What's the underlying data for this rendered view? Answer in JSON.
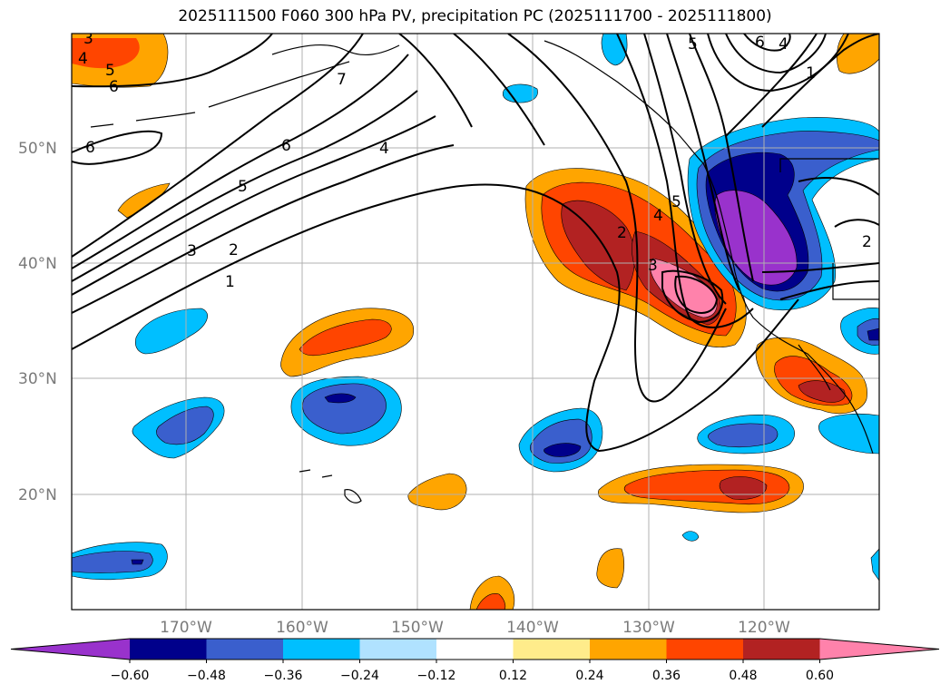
{
  "title": "2025111500 F060 300 hPa PV, precipitation PC (2025111700 - 2025111800)",
  "lat_labels": [
    "50°N",
    "40°N",
    "30°N",
    "20°N"
  ],
  "lon_labels": [
    "170°W",
    "160°W",
    "150°W",
    "140°W",
    "130°W",
    "120°W"
  ],
  "colorbar": {
    "tick_labels": [
      "−0.60",
      "−0.48",
      "−0.36",
      "−0.24",
      "−0.12",
      "0.12",
      "0.24",
      "0.36",
      "0.48",
      "0.60"
    ],
    "colors": [
      "#9932cc",
      "#00008b",
      "#3a5fcd",
      "#00bfff",
      "#b0e2ff",
      "#ffffff",
      "#ffec8b",
      "#ffa500",
      "#ff4500",
      "#b22222",
      "#ff82ab"
    ]
  },
  "contour_labels": [
    "1",
    "2",
    "3",
    "4",
    "5",
    "6",
    "7"
  ]
}
